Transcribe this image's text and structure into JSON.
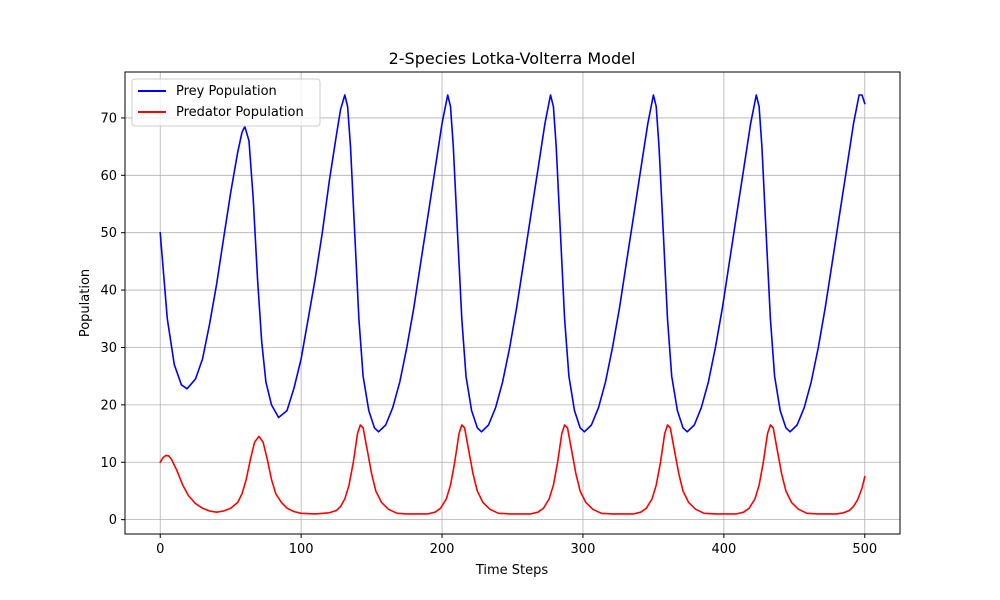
{
  "chart_data": {
    "type": "line",
    "title": "2-Species Lotka-Volterra Model",
    "xlabel": "Time Steps",
    "ylabel": "Population",
    "xlim": [
      -25,
      525
    ],
    "ylim": [
      -2.5,
      78
    ],
    "xticks": [
      0,
      100,
      200,
      300,
      400,
      500
    ],
    "yticks": [
      0,
      10,
      20,
      30,
      40,
      50,
      60,
      70
    ],
    "grid": true,
    "legend_position": "top-left",
    "series": [
      {
        "name": "Prey Population",
        "color": "#0000ff",
        "points": [
          [
            0,
            50
          ],
          [
            5,
            35
          ],
          [
            10,
            27
          ],
          [
            15,
            23.5
          ],
          [
            19,
            22.8
          ],
          [
            25,
            24.5
          ],
          [
            30,
            28
          ],
          [
            35,
            34
          ],
          [
            40,
            41
          ],
          [
            45,
            49
          ],
          [
            50,
            57
          ],
          [
            55,
            64
          ],
          [
            58,
            67.5
          ],
          [
            60,
            68.5
          ],
          [
            63,
            66
          ],
          [
            66,
            56
          ],
          [
            69,
            42
          ],
          [
            72,
            31
          ],
          [
            75,
            24
          ],
          [
            79,
            20
          ],
          [
            84,
            17.8
          ],
          [
            90,
            19
          ],
          [
            95,
            23
          ],
          [
            100,
            28
          ],
          [
            105,
            35
          ],
          [
            110,
            42
          ],
          [
            115,
            50
          ],
          [
            120,
            59
          ],
          [
            125,
            67
          ],
          [
            128,
            71.5
          ],
          [
            131,
            74
          ],
          [
            133,
            72
          ],
          [
            135,
            65
          ],
          [
            138,
            50
          ],
          [
            141,
            35
          ],
          [
            144,
            25
          ],
          [
            148,
            19
          ],
          [
            152,
            16
          ],
          [
            155,
            15.3
          ],
          [
            160,
            16.5
          ],
          [
            165,
            19.5
          ],
          [
            170,
            24
          ],
          [
            175,
            30
          ],
          [
            180,
            37
          ],
          [
            185,
            45
          ],
          [
            190,
            53
          ],
          [
            195,
            61
          ],
          [
            200,
            69
          ],
          [
            204,
            74
          ],
          [
            206,
            72
          ],
          [
            208,
            65
          ],
          [
            211,
            50
          ],
          [
            214,
            35
          ],
          [
            217,
            25
          ],
          [
            221,
            19
          ],
          [
            225,
            16
          ],
          [
            228,
            15.3
          ],
          [
            233,
            16.5
          ],
          [
            238,
            19.5
          ],
          [
            243,
            24
          ],
          [
            248,
            30
          ],
          [
            253,
            37
          ],
          [
            258,
            45
          ],
          [
            263,
            53
          ],
          [
            268,
            61
          ],
          [
            273,
            69
          ],
          [
            277,
            74
          ],
          [
            279,
            72
          ],
          [
            281,
            65
          ],
          [
            284,
            50
          ],
          [
            287,
            35
          ],
          [
            290,
            25
          ],
          [
            294,
            19
          ],
          [
            298,
            16
          ],
          [
            301,
            15.3
          ],
          [
            306,
            16.5
          ],
          [
            311,
            19.5
          ],
          [
            316,
            24
          ],
          [
            321,
            30
          ],
          [
            326,
            37
          ],
          [
            331,
            45
          ],
          [
            336,
            53
          ],
          [
            341,
            61
          ],
          [
            346,
            69
          ],
          [
            350,
            74
          ],
          [
            352,
            72
          ],
          [
            354,
            65
          ],
          [
            357,
            50
          ],
          [
            360,
            35
          ],
          [
            363,
            25
          ],
          [
            367,
            19
          ],
          [
            371,
            16
          ],
          [
            374,
            15.3
          ],
          [
            379,
            16.5
          ],
          [
            384,
            19.5
          ],
          [
            389,
            24
          ],
          [
            394,
            30
          ],
          [
            399,
            37
          ],
          [
            404,
            45
          ],
          [
            409,
            53
          ],
          [
            414,
            61
          ],
          [
            419,
            69
          ],
          [
            423,
            74
          ],
          [
            425,
            72
          ],
          [
            427,
            65
          ],
          [
            430,
            50
          ],
          [
            433,
            35
          ],
          [
            436,
            25
          ],
          [
            440,
            19
          ],
          [
            444,
            16
          ],
          [
            447,
            15.3
          ],
          [
            452,
            16.5
          ],
          [
            457,
            19.5
          ],
          [
            462,
            24
          ],
          [
            467,
            30
          ],
          [
            472,
            37
          ],
          [
            477,
            45
          ],
          [
            482,
            53
          ],
          [
            487,
            61
          ],
          [
            492,
            69
          ],
          [
            496,
            74
          ],
          [
            498,
            74
          ],
          [
            500,
            72.5
          ]
        ]
      },
      {
        "name": "Predator Population",
        "color": "#ff0000",
        "points": [
          [
            0,
            10
          ],
          [
            2,
            10.8
          ],
          [
            4,
            11.2
          ],
          [
            6,
            11.1
          ],
          [
            8,
            10.5
          ],
          [
            12,
            8.5
          ],
          [
            16,
            6
          ],
          [
            20,
            4.2
          ],
          [
            25,
            2.8
          ],
          [
            30,
            2
          ],
          [
            35,
            1.5
          ],
          [
            40,
            1.3
          ],
          [
            45,
            1.5
          ],
          [
            50,
            2
          ],
          [
            55,
            3
          ],
          [
            58,
            4.5
          ],
          [
            61,
            7
          ],
          [
            64,
            10.5
          ],
          [
            67,
            13.5
          ],
          [
            70,
            14.5
          ],
          [
            73,
            13.5
          ],
          [
            76,
            10.5
          ],
          [
            79,
            7
          ],
          [
            82,
            4.5
          ],
          [
            86,
            3
          ],
          [
            90,
            2
          ],
          [
            95,
            1.4
          ],
          [
            100,
            1.1
          ],
          [
            110,
            1
          ],
          [
            120,
            1.2
          ],
          [
            125,
            1.6
          ],
          [
            128,
            2.3
          ],
          [
            131,
            3.6
          ],
          [
            134,
            6
          ],
          [
            137,
            10
          ],
          [
            140,
            15
          ],
          [
            142,
            16.5
          ],
          [
            144,
            16
          ],
          [
            147,
            12
          ],
          [
            150,
            8
          ],
          [
            153,
            5
          ],
          [
            157,
            3
          ],
          [
            162,
            1.8
          ],
          [
            168,
            1.1
          ],
          [
            175,
            1
          ],
          [
            190,
            1
          ],
          [
            195,
            1.3
          ],
          [
            199,
            2
          ],
          [
            203,
            3.6
          ],
          [
            206,
            6
          ],
          [
            209,
            10
          ],
          [
            212,
            15
          ],
          [
            214,
            16.5
          ],
          [
            216,
            16
          ],
          [
            219,
            12
          ],
          [
            222,
            8
          ],
          [
            225,
            5
          ],
          [
            229,
            3
          ],
          [
            234,
            1.8
          ],
          [
            240,
            1.1
          ],
          [
            248,
            1
          ],
          [
            263,
            1
          ],
          [
            268,
            1.3
          ],
          [
            272,
            2
          ],
          [
            276,
            3.6
          ],
          [
            279,
            6
          ],
          [
            282,
            10
          ],
          [
            285,
            15
          ],
          [
            287,
            16.5
          ],
          [
            289,
            16
          ],
          [
            292,
            12
          ],
          [
            295,
            8
          ],
          [
            298,
            5
          ],
          [
            302,
            3
          ],
          [
            307,
            1.8
          ],
          [
            313,
            1.1
          ],
          [
            321,
            1
          ],
          [
            336,
            1
          ],
          [
            341,
            1.3
          ],
          [
            345,
            2
          ],
          [
            349,
            3.6
          ],
          [
            352,
            6
          ],
          [
            355,
            10
          ],
          [
            358,
            15
          ],
          [
            360,
            16.5
          ],
          [
            362,
            16
          ],
          [
            365,
            12
          ],
          [
            368,
            8
          ],
          [
            371,
            5
          ],
          [
            375,
            3
          ],
          [
            380,
            1.8
          ],
          [
            386,
            1.1
          ],
          [
            394,
            1
          ],
          [
            409,
            1
          ],
          [
            414,
            1.3
          ],
          [
            418,
            2
          ],
          [
            422,
            3.6
          ],
          [
            425,
            6
          ],
          [
            428,
            10
          ],
          [
            431,
            15
          ],
          [
            433,
            16.5
          ],
          [
            435,
            16
          ],
          [
            438,
            12
          ],
          [
            441,
            8
          ],
          [
            444,
            5
          ],
          [
            448,
            3
          ],
          [
            453,
            1.8
          ],
          [
            459,
            1.1
          ],
          [
            467,
            1
          ],
          [
            480,
            1
          ],
          [
            485,
            1.2
          ],
          [
            489,
            1.6
          ],
          [
            492,
            2.3
          ],
          [
            495,
            3.5
          ],
          [
            498,
            5.5
          ],
          [
            500,
            7.5
          ]
        ]
      }
    ]
  }
}
